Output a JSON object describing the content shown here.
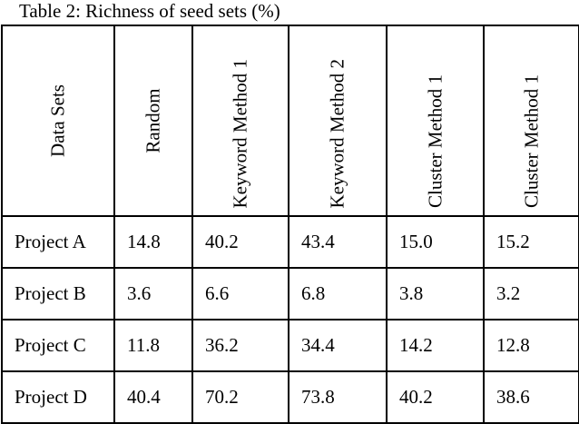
{
  "caption": "Table 2: Richness of seed sets (%)",
  "columns": [
    "Data Sets",
    "Random",
    "Keyword Method 1",
    "Keyword Method 2",
    "Cluster Method 1",
    "Cluster Method 1"
  ],
  "rows": [
    {
      "label": "Project A",
      "values": [
        "14.8",
        "40.2",
        "43.4",
        "15.0",
        "15.2"
      ]
    },
    {
      "label": "Project B",
      "values": [
        "3.6",
        "6.6",
        "6.8",
        "3.8",
        "3.2"
      ]
    },
    {
      "label": "Project C",
      "values": [
        "11.8",
        "36.2",
        "34.4",
        "14.2",
        "12.8"
      ]
    },
    {
      "label": "Project D",
      "values": [
        "40.4",
        "70.2",
        "73.8",
        "40.2",
        "38.6"
      ]
    }
  ]
}
